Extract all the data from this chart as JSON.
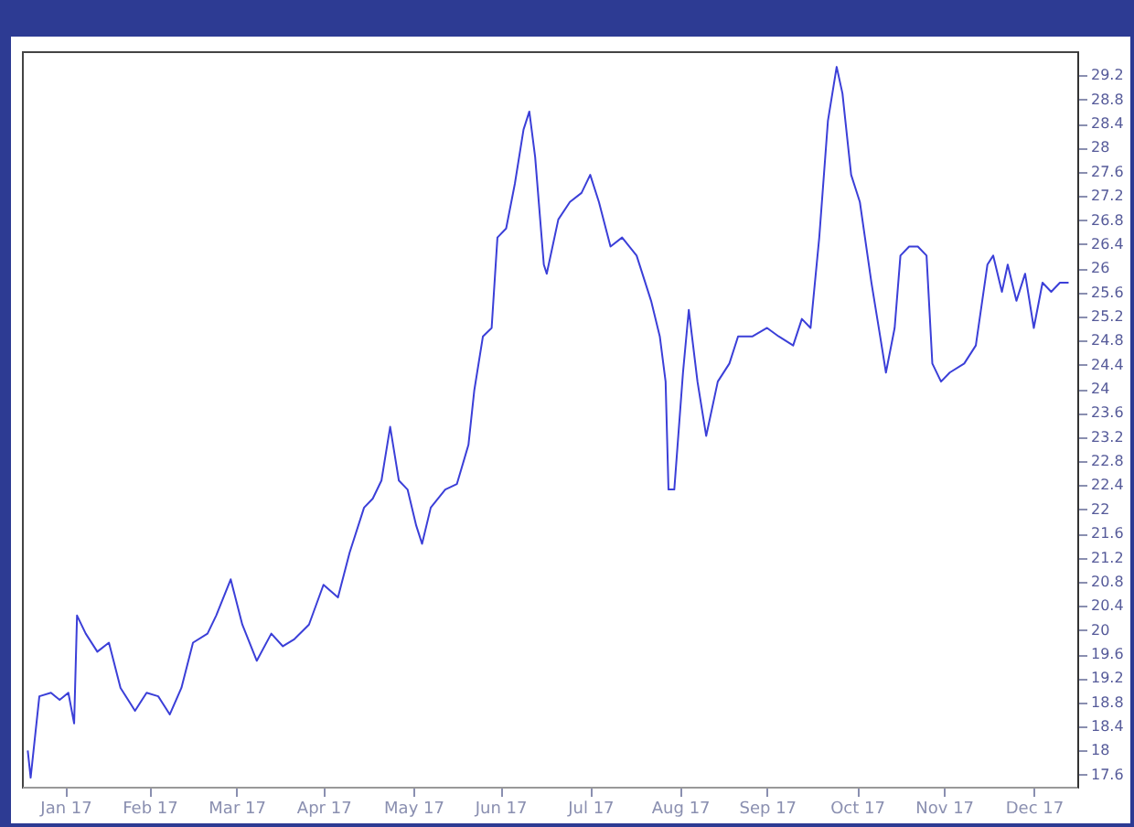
{
  "chart_data": {
    "type": "line",
    "x": [
      "2017-01-03",
      "2017-01-04",
      "2017-01-07",
      "2017-01-11",
      "2017-01-14",
      "2017-01-17",
      "2017-01-19",
      "2017-01-20",
      "2017-01-23",
      "2017-01-27",
      "2017-01-31",
      "2017-02-04",
      "2017-02-09",
      "2017-02-13",
      "2017-02-17",
      "2017-02-21",
      "2017-02-25",
      "2017-03-01",
      "2017-03-06",
      "2017-03-09",
      "2017-03-14",
      "2017-03-18",
      "2017-03-23",
      "2017-03-28",
      "2017-04-01",
      "2017-04-05",
      "2017-04-10",
      "2017-04-15",
      "2017-04-20",
      "2017-04-24",
      "2017-04-29",
      "2017-05-02",
      "2017-05-05",
      "2017-05-08",
      "2017-05-11",
      "2017-05-14",
      "2017-05-17",
      "2017-05-19",
      "2017-05-22",
      "2017-05-27",
      "2017-05-31",
      "2017-06-04",
      "2017-06-06",
      "2017-06-09",
      "2017-06-12",
      "2017-06-14",
      "2017-06-17",
      "2017-06-20",
      "2017-06-23",
      "2017-06-25",
      "2017-06-27",
      "2017-06-30",
      "2017-07-01",
      "2017-07-05",
      "2017-07-09",
      "2017-07-13",
      "2017-07-16",
      "2017-07-19",
      "2017-07-23",
      "2017-07-27",
      "2017-08-01",
      "2017-08-06",
      "2017-08-09",
      "2017-08-11",
      "2017-08-12",
      "2017-08-14",
      "2017-08-17",
      "2017-08-19",
      "2017-08-22",
      "2017-08-25",
      "2017-08-29",
      "2017-09-02",
      "2017-09-05",
      "2017-09-10",
      "2017-09-15",
      "2017-09-19",
      "2017-09-24",
      "2017-09-27",
      "2017-09-30",
      "2017-10-03",
      "2017-10-06",
      "2017-10-09",
      "2017-10-11",
      "2017-10-14",
      "2017-10-17",
      "2017-10-21",
      "2017-10-24",
      "2017-10-26",
      "2017-10-29",
      "2017-10-31",
      "2017-11-03",
      "2017-11-06",
      "2017-11-09",
      "2017-11-11",
      "2017-11-14",
      "2017-11-17",
      "2017-11-22",
      "2017-11-26",
      "2017-11-30",
      "2017-12-02",
      "2017-12-05",
      "2017-12-07",
      "2017-12-10",
      "2017-12-13",
      "2017-12-16",
      "2017-12-19",
      "2017-12-22",
      "2017-12-25",
      "2017-12-28"
    ],
    "series": [
      {
        "color": "#3b3fd8",
        "values": [
          18.0,
          17.55,
          18.9,
          18.96,
          18.84,
          18.96,
          18.45,
          20.24,
          19.94,
          19.64,
          19.79,
          19.04,
          18.66,
          18.96,
          18.9,
          18.6,
          19.04,
          19.79,
          19.94,
          20.24,
          20.84,
          20.09,
          19.49,
          19.94,
          19.73,
          19.85,
          20.09,
          20.75,
          20.54,
          21.28,
          22.03,
          22.18,
          22.48,
          23.37,
          22.48,
          22.33,
          21.73,
          21.43,
          22.03,
          22.33,
          22.42,
          23.07,
          23.97,
          24.87,
          25.01,
          26.51,
          26.66,
          27.4,
          28.3,
          28.6,
          27.85,
          26.06,
          25.91,
          26.81,
          27.1,
          27.25,
          27.55,
          27.1,
          26.36,
          26.51,
          26.21,
          25.46,
          24.87,
          24.12,
          22.33,
          22.33,
          24.27,
          25.31,
          24.12,
          23.22,
          24.12,
          24.42,
          24.87,
          24.87,
          25.01,
          24.87,
          24.72,
          25.16,
          25.01,
          26.51,
          28.45,
          29.34,
          28.9,
          27.55,
          27.1,
          25.76,
          24.87,
          24.27,
          25.01,
          26.21,
          26.36,
          26.36,
          26.21,
          24.42,
          24.12,
          24.27,
          24.42,
          24.72,
          26.06,
          26.21,
          25.61,
          26.06,
          25.46,
          25.91,
          25.01,
          25.76,
          25.61,
          25.76,
          25.76
        ]
      }
    ],
    "xlim": [
      "2017-01-01",
      "2017-12-31"
    ],
    "xticks": [
      {
        "value": "2017-01-16",
        "label": "Jan 17"
      },
      {
        "value": "2017-02-14",
        "label": "Feb 17"
      },
      {
        "value": "2017-03-16",
        "label": "Mar 17"
      },
      {
        "value": "2017-04-15",
        "label": "Apr 17"
      },
      {
        "value": "2017-05-16",
        "label": "May 17"
      },
      {
        "value": "2017-06-15",
        "label": "Jun 17"
      },
      {
        "value": "2017-07-16",
        "label": "Jul 17"
      },
      {
        "value": "2017-08-16",
        "label": "Aug 17"
      },
      {
        "value": "2017-09-15",
        "label": "Sep 17"
      },
      {
        "value": "2017-10-16",
        "label": "Oct 17"
      },
      {
        "value": "2017-11-15",
        "label": "Nov 17"
      },
      {
        "value": "2017-12-16",
        "label": "Dec 17"
      }
    ],
    "ylim": [
      17.4,
      29.6
    ],
    "yticks": [
      17.6,
      18,
      18.4,
      18.8,
      19.2,
      19.6,
      20,
      20.4,
      20.8,
      21.2,
      21.6,
      22,
      22.4,
      22.8,
      23.2,
      23.6,
      24,
      24.4,
      24.8,
      25.2,
      25.6,
      26,
      26.4,
      26.8,
      27.2,
      27.6,
      28,
      28.4,
      28.8,
      29.2
    ],
    "grid": false,
    "marker": "none",
    "line_style": "solid"
  }
}
